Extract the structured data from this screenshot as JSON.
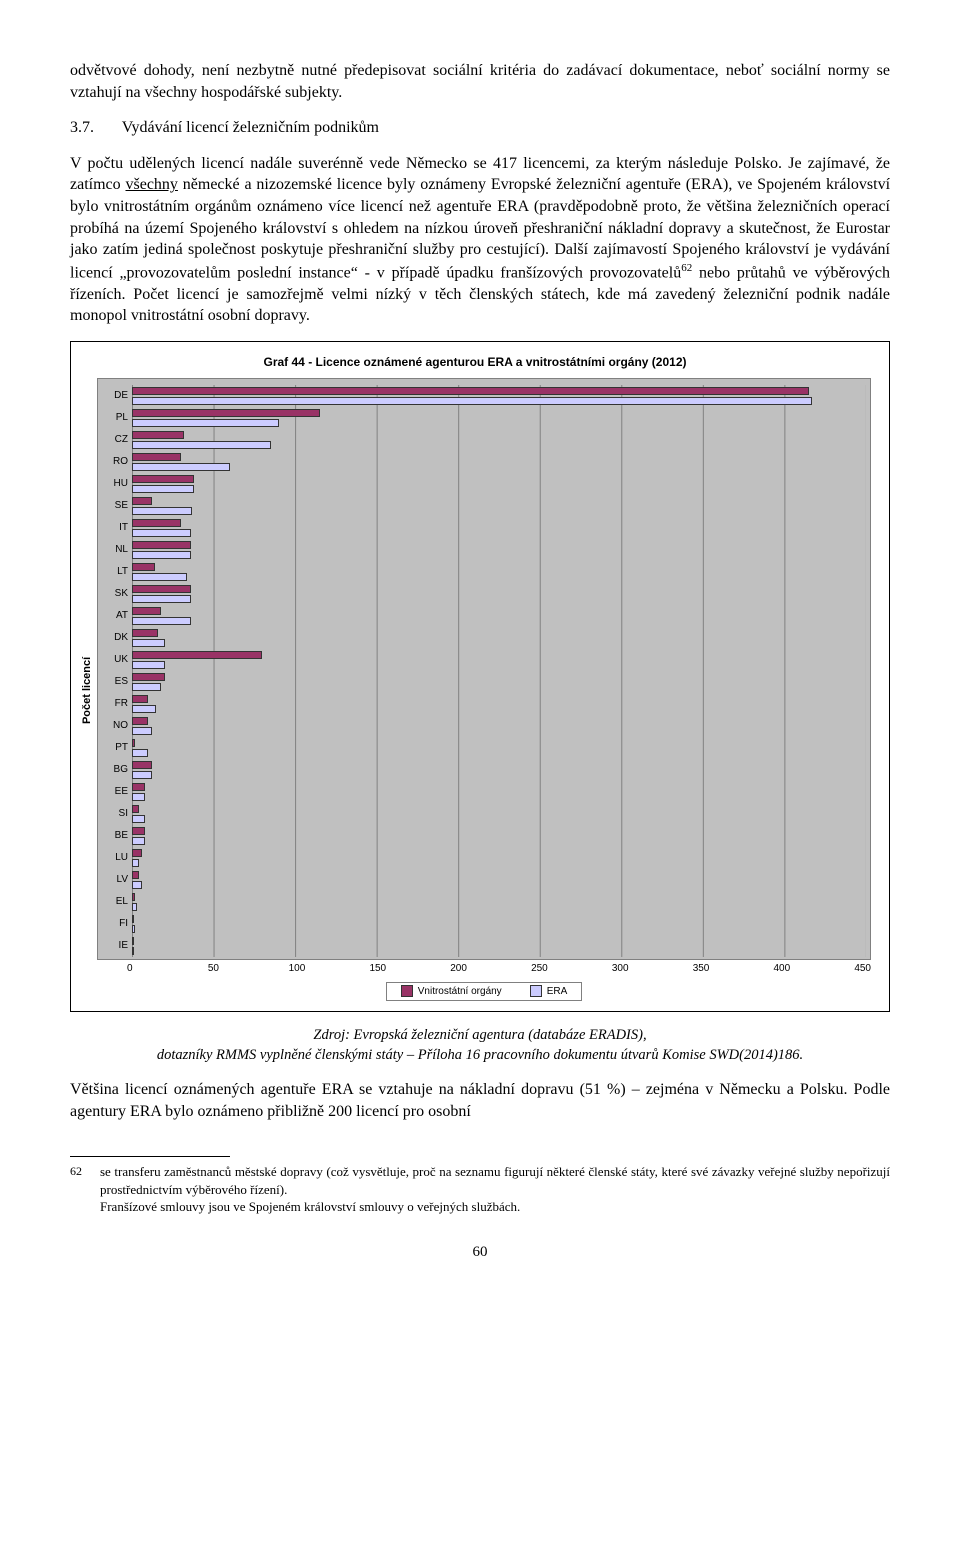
{
  "para1": "odvětvové dohody, není nezbytně nutné předepisovat sociální kritéria do zadávací dokumentace, neboť sociální normy se vztahují na všechny hospodářské subjekty.",
  "heading": {
    "num": "3.7.",
    "text": "Vydávání licencí železničním podnikům"
  },
  "para2_a": "V počtu udělených licencí nadále suverénně vede Německo se 417 licencemi, za kterým následuje Polsko. Je zajímavé, že zatímco ",
  "para2_u": "všechny",
  "para2_b": " německé a nizozemské licence byly oznámeny Evropské železniční agentuře (ERA), ve Spojeném království bylo vnitrostátním orgánům oznámeno více licencí než agentuře ERA (pravděpodobně proto, že většina železničních operací probíhá na území Spojeného království s ohledem na nízkou úroveň přeshraniční nákladní dopravy a skutečnost, že Eurostar jako zatím jediná společnost poskytuje přeshraniční služby pro cestující). Další zajímavostí Spojeného království je vydávání licencí „provozovatelům poslední instance“ - v případě úpadku franšízových provozovatelů",
  "para2_sup": "62",
  "para2_c": " nebo průtahů ve výběrových řízeních. Počet licencí je samozřejmě velmi nízký v těch členských státech, kde má zavedený železniční podnik nadále monopol vnitrostátní osobní dopravy.",
  "chart": {
    "title": "Graf 44 - Licence oznámené agenturou ERA a vnitrostátními orgány (2012)",
    "ylabel": "Počet licencí",
    "xmax": 450,
    "xtick_step": 50,
    "xticks": [
      "0",
      "50",
      "100",
      "150",
      "200",
      "250",
      "300",
      "350",
      "400",
      "450"
    ],
    "legend": {
      "vo": "Vnitrostátní orgány",
      "era": "ERA"
    },
    "colors": {
      "vo": "#993366",
      "era": "#ccccff",
      "plot_bg": "#c0c0c0",
      "grid": "#808080"
    },
    "categories": [
      {
        "label": "DE",
        "vo": 415,
        "era": 417
      },
      {
        "label": "PL",
        "vo": 115,
        "era": 90
      },
      {
        "label": "CZ",
        "vo": 32,
        "era": 85
      },
      {
        "label": "RO",
        "vo": 30,
        "era": 60
      },
      {
        "label": "HU",
        "vo": 38,
        "era": 38
      },
      {
        "label": "SE",
        "vo": 12,
        "era": 37
      },
      {
        "label": "IT",
        "vo": 30,
        "era": 36
      },
      {
        "label": "NL",
        "vo": 36,
        "era": 36
      },
      {
        "label": "LT",
        "vo": 14,
        "era": 34
      },
      {
        "label": "SK",
        "vo": 36,
        "era": 36
      },
      {
        "label": "AT",
        "vo": 18,
        "era": 36
      },
      {
        "label": "DK",
        "vo": 16,
        "era": 20
      },
      {
        "label": "UK",
        "vo": 80,
        "era": 20
      },
      {
        "label": "ES",
        "vo": 20,
        "era": 18
      },
      {
        "label": "FR",
        "vo": 10,
        "era": 15
      },
      {
        "label": "NO",
        "vo": 10,
        "era": 12
      },
      {
        "label": "PT",
        "vo": 2,
        "era": 10
      },
      {
        "label": "BG",
        "vo": 12,
        "era": 12
      },
      {
        "label": "EE",
        "vo": 8,
        "era": 8
      },
      {
        "label": "SI",
        "vo": 4,
        "era": 8
      },
      {
        "label": "BE",
        "vo": 8,
        "era": 8
      },
      {
        "label": "LU",
        "vo": 6,
        "era": 4
      },
      {
        "label": "LV",
        "vo": 4,
        "era": 6
      },
      {
        "label": "EL",
        "vo": 2,
        "era": 3
      },
      {
        "label": "FI",
        "vo": 1,
        "era": 2
      },
      {
        "label": "IE",
        "vo": 0,
        "era": 1
      }
    ]
  },
  "source_line1": "Zdroj: Evropská železniční agentura (databáze ERADIS),",
  "source_line2": "dotazníky RMMS vyplněné členskými státy – Příloha 16 pracovního dokumentu útvarů Komise SWD(2014)186.",
  "para3": "Většina licencí oznámených agentuře ERA se vztahuje na nákladní dopravu (51 %) – zejména v Německu a Polsku. Podle agentury ERA bylo oznámeno přibližně 200 licencí pro osobní",
  "footnote": {
    "num": "62",
    "text_a": "se transferu zaměstnanců městské dopravy (což vysvětluje, proč na seznamu figurují některé členské státy, které své závazky veřejné služby nepořizují prostřednictvím výběrového řízení).",
    "text_b": "Franšízové smlouvy jsou ve Spojeném království smlouvy o veřejných službách."
  },
  "page_number": "60"
}
